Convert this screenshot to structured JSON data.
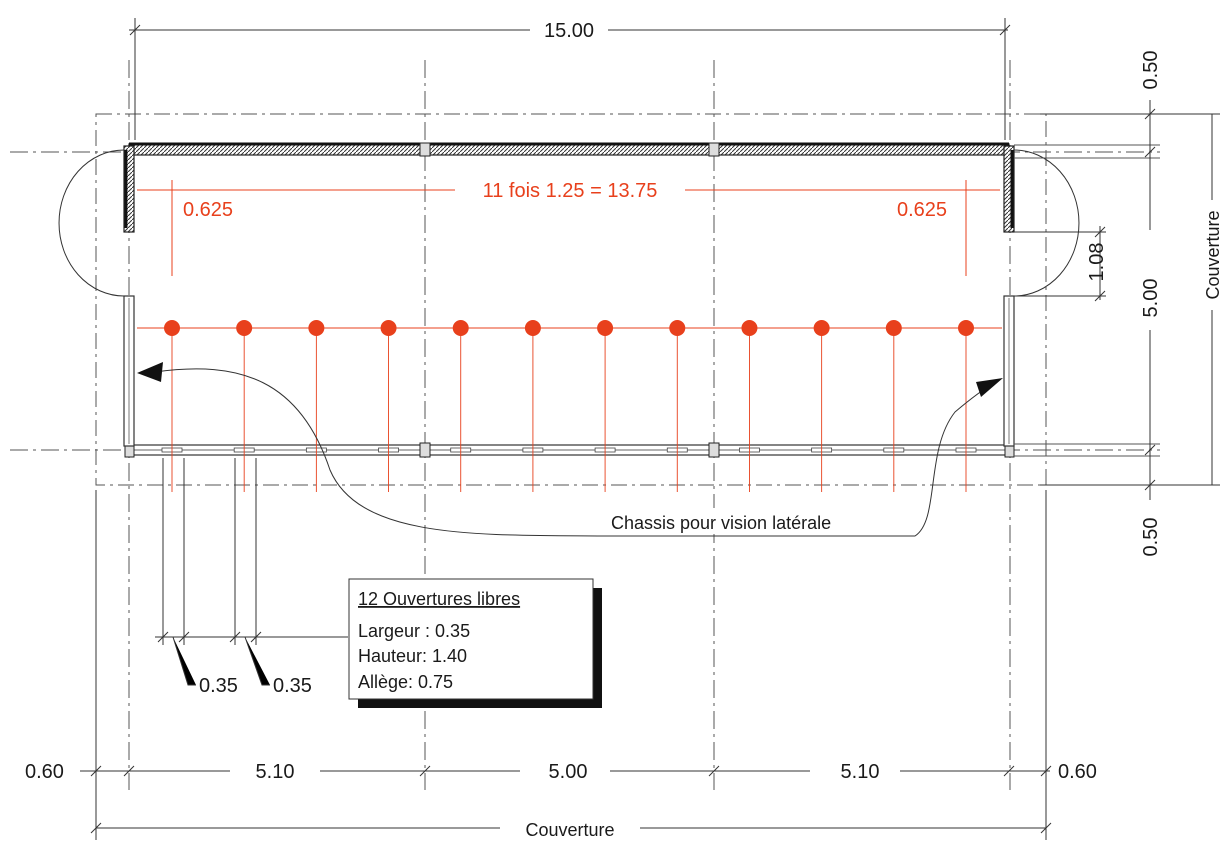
{
  "dimensions": {
    "overall_length": "15.00",
    "top_margin": "0.50",
    "bottom_margin": "0.50",
    "height": "5.00",
    "cover_vertical": "Couverture",
    "cover_horizontal": "Couverture",
    "left_overhang": "0.60",
    "right_overhang": "0.60",
    "span_left": "5.10",
    "span_middle": "5.00",
    "span_right": "5.10",
    "door_offset": "1.08"
  },
  "orange": {
    "spacing_label": "11 fois 1.25 = 13.75",
    "left_offset": "0.625",
    "right_offset": "0.625",
    "color": "#e8401c",
    "column_count": 12
  },
  "annotations": {
    "chassis_label": "Chassis pour vision latérale",
    "opening_width_a": "0.35",
    "opening_width_b": "0.35"
  },
  "legend": {
    "title": "12 Ouvertures libres",
    "lines": [
      "Largeur : 0.35",
      "Hauteur: 1.40",
      "Allège: 0.75"
    ]
  }
}
